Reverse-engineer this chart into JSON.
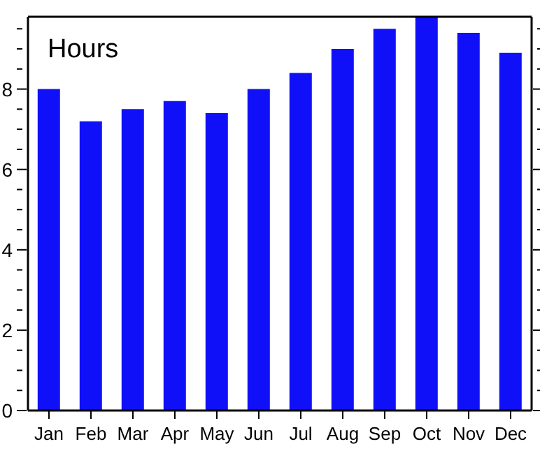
{
  "chart_data": {
    "type": "bar",
    "ylabel": "Hours",
    "categories": [
      "Jan",
      "Feb",
      "Mar",
      "Apr",
      "May",
      "Jun",
      "Jul",
      "Aug",
      "Sep",
      "Oct",
      "Nov",
      "Dec"
    ],
    "values": [
      8.0,
      7.2,
      7.5,
      7.7,
      7.4,
      8.0,
      8.4,
      9.0,
      9.5,
      9.8,
      9.4,
      8.9
    ],
    "color": "#1010f8",
    "ylim": [
      0,
      9.8
    ],
    "yticks": [
      0,
      {
        "value": 0.5,
        "label": null
      },
      {
        "value": 1,
        "label": null
      },
      {
        "value": 1.5,
        "label": null
      },
      2,
      {
        "value": 2.5,
        "label": null
      },
      {
        "value": 3,
        "label": null
      },
      {
        "value": 3.5,
        "label": null
      },
      4,
      {
        "value": 4.5,
        "label": null
      },
      {
        "value": 5,
        "label": null
      },
      {
        "value": 5.5,
        "label": null
      },
      6,
      {
        "value": 6.5,
        "label": null
      },
      {
        "value": 7,
        "label": null
      },
      {
        "value": 7.5,
        "label": null
      },
      8,
      {
        "value": 8.5,
        "label": null
      },
      {
        "value": 9,
        "label": null
      },
      {
        "value": 9.5,
        "label": null
      }
    ],
    "grid": false,
    "legend": false
  }
}
